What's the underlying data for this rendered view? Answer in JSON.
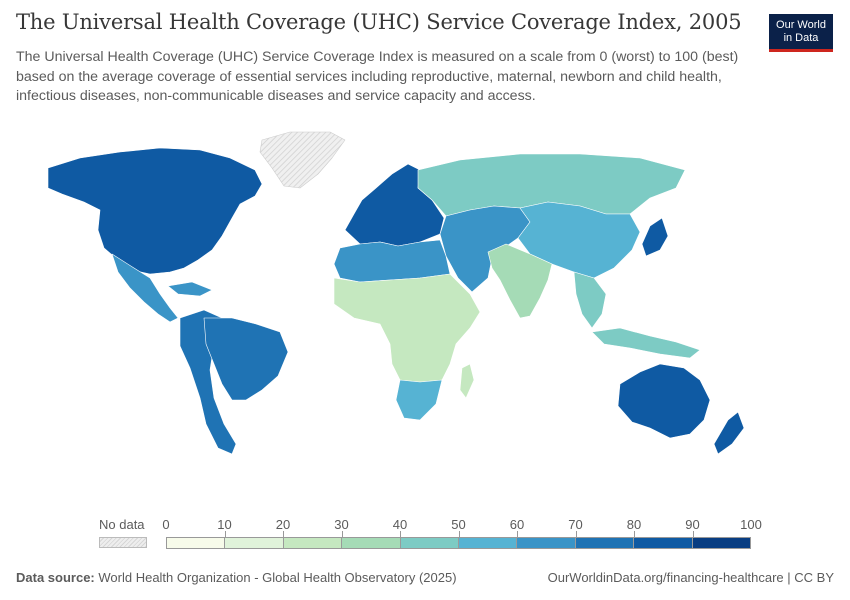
{
  "header": {
    "title": "The Universal Health Coverage (UHC) Service Coverage Index, 2005",
    "subtitle": "The Universal Health Coverage (UHC) Service Coverage Index is measured on a scale from 0 (worst) to 100 (best) based on the average coverage of essential services including reproductive, maternal, newborn and child health, infectious diseases, non-communicable diseases and service capacity and access."
  },
  "logo": {
    "line1": "Our World",
    "line2": "in Data"
  },
  "legend": {
    "no_data_label": "No data",
    "ticks": [
      "0",
      "10",
      "20",
      "30",
      "40",
      "50",
      "60",
      "70",
      "80",
      "90",
      "100"
    ],
    "colors": [
      "#f7fbea",
      "#e0f3da",
      "#c5e8c0",
      "#a5dbb6",
      "#7dcbc4",
      "#56b3d3",
      "#3a94c7",
      "#1f73b4",
      "#0f5aa3",
      "#083d82"
    ]
  },
  "map": {
    "regions": [
      {
        "name": "North America",
        "value": 80
      },
      {
        "name": "Mexico",
        "value": 65
      },
      {
        "name": "Greenland",
        "value": null
      },
      {
        "name": "Brazil",
        "value": 75
      },
      {
        "name": "South America",
        "value": 70
      },
      {
        "name": "Western Europe",
        "value": 82
      },
      {
        "name": "Russia",
        "value": 45
      },
      {
        "name": "Central Asia",
        "value": 65
      },
      {
        "name": "China",
        "value": 55
      },
      {
        "name": "India",
        "value": 35
      },
      {
        "name": "North Africa",
        "value": 62
      },
      {
        "name": "Sub-Saharan Africa",
        "value": 25
      },
      {
        "name": "Southern Africa",
        "value": 55
      },
      {
        "name": "Australia",
        "value": 82
      },
      {
        "name": "Japan",
        "value": 80
      },
      {
        "name": "Southeast Asia",
        "value": 40
      }
    ]
  },
  "footer": {
    "source_label": "Data source:",
    "source_text": "World Health Organization - Global Health Observatory (2025)",
    "credit": "OurWorldinData.org/financing-healthcare | CC BY"
  }
}
